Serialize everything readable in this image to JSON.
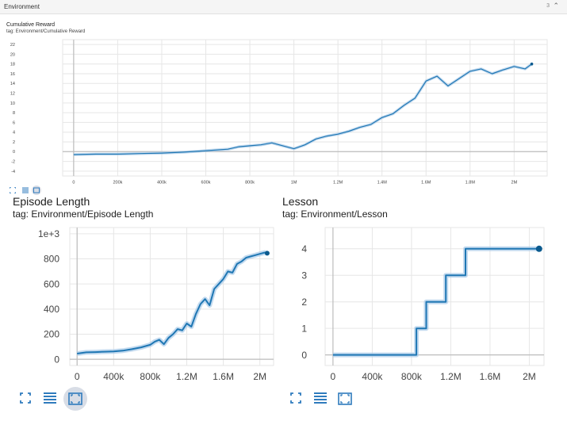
{
  "header": {
    "title": "Environment",
    "count": "3",
    "chevron_icon": "chevron-up-icon"
  },
  "colors": {
    "line": "#1f77b4",
    "line_dark": "#0b5a8e",
    "smooth_band": "#a9cbe8",
    "grid": "#e6e6e6",
    "axis": "#bdbdbd"
  },
  "cards": [
    {
      "title": "Cumulative Reward",
      "tag": "tag: Environment/Cumulative Reward",
      "x_ticks": [
        "0",
        "200k",
        "400k",
        "600k",
        "800k",
        "1M",
        "1.2M",
        "1.4M",
        "1.6M",
        "1.8M",
        "2M"
      ],
      "y_ticks": [
        "22",
        "20",
        "18",
        "16",
        "14",
        "12",
        "10",
        "8",
        "6",
        "4",
        "2",
        "0",
        "-2",
        "-4"
      ]
    },
    {
      "title": "Episode Length",
      "tag": "tag: Environment/Episode Length",
      "x_ticks": [
        "0",
        "400k",
        "800k",
        "1.2M",
        "1.6M",
        "2M"
      ],
      "y_ticks": [
        "1e+3",
        "800",
        "600",
        "400",
        "200",
        "0"
      ]
    },
    {
      "title": "Lesson",
      "tag": "tag: Environment/Lesson",
      "x_ticks": [
        "0",
        "400k",
        "800k",
        "1.2M",
        "1.6M",
        "2M"
      ],
      "y_ticks": [
        "4",
        "3",
        "2",
        "1",
        "0"
      ]
    }
  ],
  "toolbar": {
    "icons": [
      "fit-screen-icon",
      "list-icon",
      "expand-icon"
    ]
  },
  "chart_data": [
    {
      "type": "line",
      "title": "Cumulative Reward",
      "ylim": [
        -5,
        23
      ],
      "xlim": [
        -50000,
        2150000
      ],
      "series": [
        {
          "x": [
            0,
            100000,
            200000,
            300000,
            400000,
            500000,
            600000,
            700000,
            750000,
            800000,
            850000,
            900000,
            950000,
            1000000,
            1050000,
            1100000,
            1150000,
            1200000,
            1250000,
            1300000,
            1350000,
            1400000,
            1450000,
            1500000,
            1550000,
            1600000,
            1650000,
            1700000,
            1750000,
            1800000,
            1850000,
            1900000,
            1950000,
            2000000,
            2050000,
            2080000
          ],
          "y": [
            -0.6,
            -0.5,
            -0.5,
            -0.4,
            -0.3,
            -0.1,
            0.2,
            0.5,
            1.0,
            1.2,
            1.4,
            1.8,
            1.2,
            0.6,
            1.4,
            2.6,
            3.2,
            3.6,
            4.2,
            5.0,
            5.6,
            7.0,
            7.8,
            9.5,
            11.0,
            14.5,
            15.5,
            13.5,
            15.0,
            16.5,
            17.0,
            16.0,
            16.8,
            17.5,
            17.0,
            18.0
          ]
        }
      ]
    },
    {
      "type": "line",
      "title": "Episode Length",
      "ylim": [
        -50,
        1050
      ],
      "xlim": [
        -80000,
        2150000
      ],
      "series": [
        {
          "x": [
            0,
            100000,
            200000,
            300000,
            400000,
            500000,
            600000,
            700000,
            800000,
            850000,
            900000,
            950000,
            1000000,
            1050000,
            1100000,
            1150000,
            1200000,
            1250000,
            1300000,
            1350000,
            1400000,
            1450000,
            1500000,
            1550000,
            1600000,
            1650000,
            1700000,
            1750000,
            1800000,
            1850000,
            1900000,
            1950000,
            2000000,
            2050000,
            2080000
          ],
          "y": [
            45,
            55,
            57,
            60,
            62,
            68,
            80,
            95,
            115,
            140,
            155,
            120,
            170,
            200,
            240,
            230,
            285,
            260,
            360,
            440,
            480,
            430,
            560,
            600,
            640,
            700,
            690,
            760,
            780,
            810,
            820,
            830,
            840,
            850,
            845
          ]
        }
      ]
    },
    {
      "type": "line",
      "title": "Lesson",
      "ylim": [
        -0.4,
        4.8
      ],
      "xlim": [
        -80000,
        2150000
      ],
      "series": [
        {
          "x": [
            0,
            800000,
            850000,
            900000,
            950000,
            1000000,
            1050000,
            1150000,
            1200000,
            1350000,
            1400000,
            2100000
          ],
          "y": [
            0,
            0,
            1,
            1,
            2,
            2,
            2,
            3,
            3,
            4,
            4,
            4
          ]
        }
      ]
    }
  ]
}
